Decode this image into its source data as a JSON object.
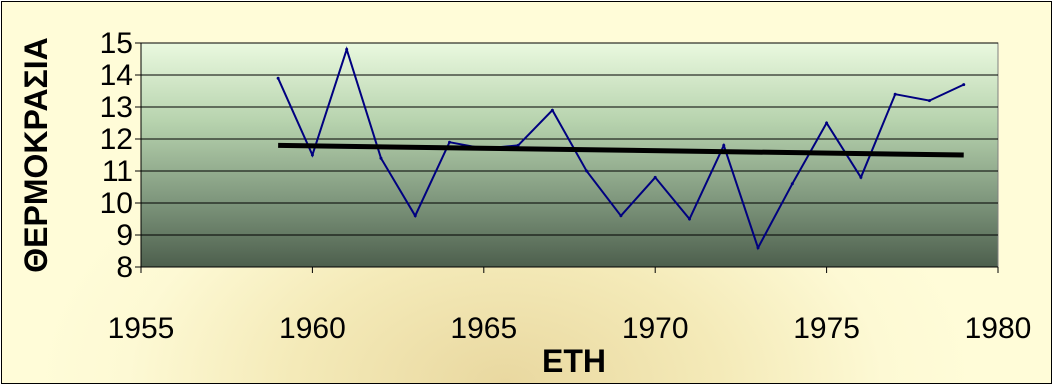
{
  "chart_data": {
    "type": "line",
    "title": "",
    "xlabel": "ΕΤΗ",
    "ylabel": "ΘΕΡΜΟΚΡΑΣΙΑ",
    "xlim": [
      1955,
      1980
    ],
    "ylim": [
      8,
      15
    ],
    "x_ticks": [
      "1955",
      "1960",
      "1965",
      "1970",
      "1975",
      "1980"
    ],
    "y_ticks": [
      "8",
      "9",
      "10",
      "11",
      "12",
      "13",
      "14",
      "15"
    ],
    "grid": "horizontal",
    "legend": "none",
    "series": [
      {
        "color": "#000080",
        "x": [
          1959,
          1960,
          1961,
          1962,
          1963,
          1964,
          1965,
          1966,
          1967,
          1968,
          1969,
          1970,
          1971,
          1972,
          1973,
          1974,
          1975,
          1976,
          1977,
          1978,
          1979
        ],
        "y": [
          13.9,
          11.5,
          14.8,
          11.4,
          9.6,
          11.9,
          11.7,
          11.8,
          12.9,
          11.0,
          9.6,
          10.8,
          9.5,
          11.8,
          8.6,
          10.6,
          12.5,
          10.8,
          13.4,
          13.2,
          13.7
        ]
      }
    ],
    "trendline": {
      "color": "#000000",
      "x": [
        1959,
        1979
      ],
      "y": [
        11.8,
        11.5
      ]
    }
  },
  "colors": {
    "plot_top": "#eaf9df",
    "plot_bottom": "#4d5f4d",
    "gridline": "#000000"
  }
}
